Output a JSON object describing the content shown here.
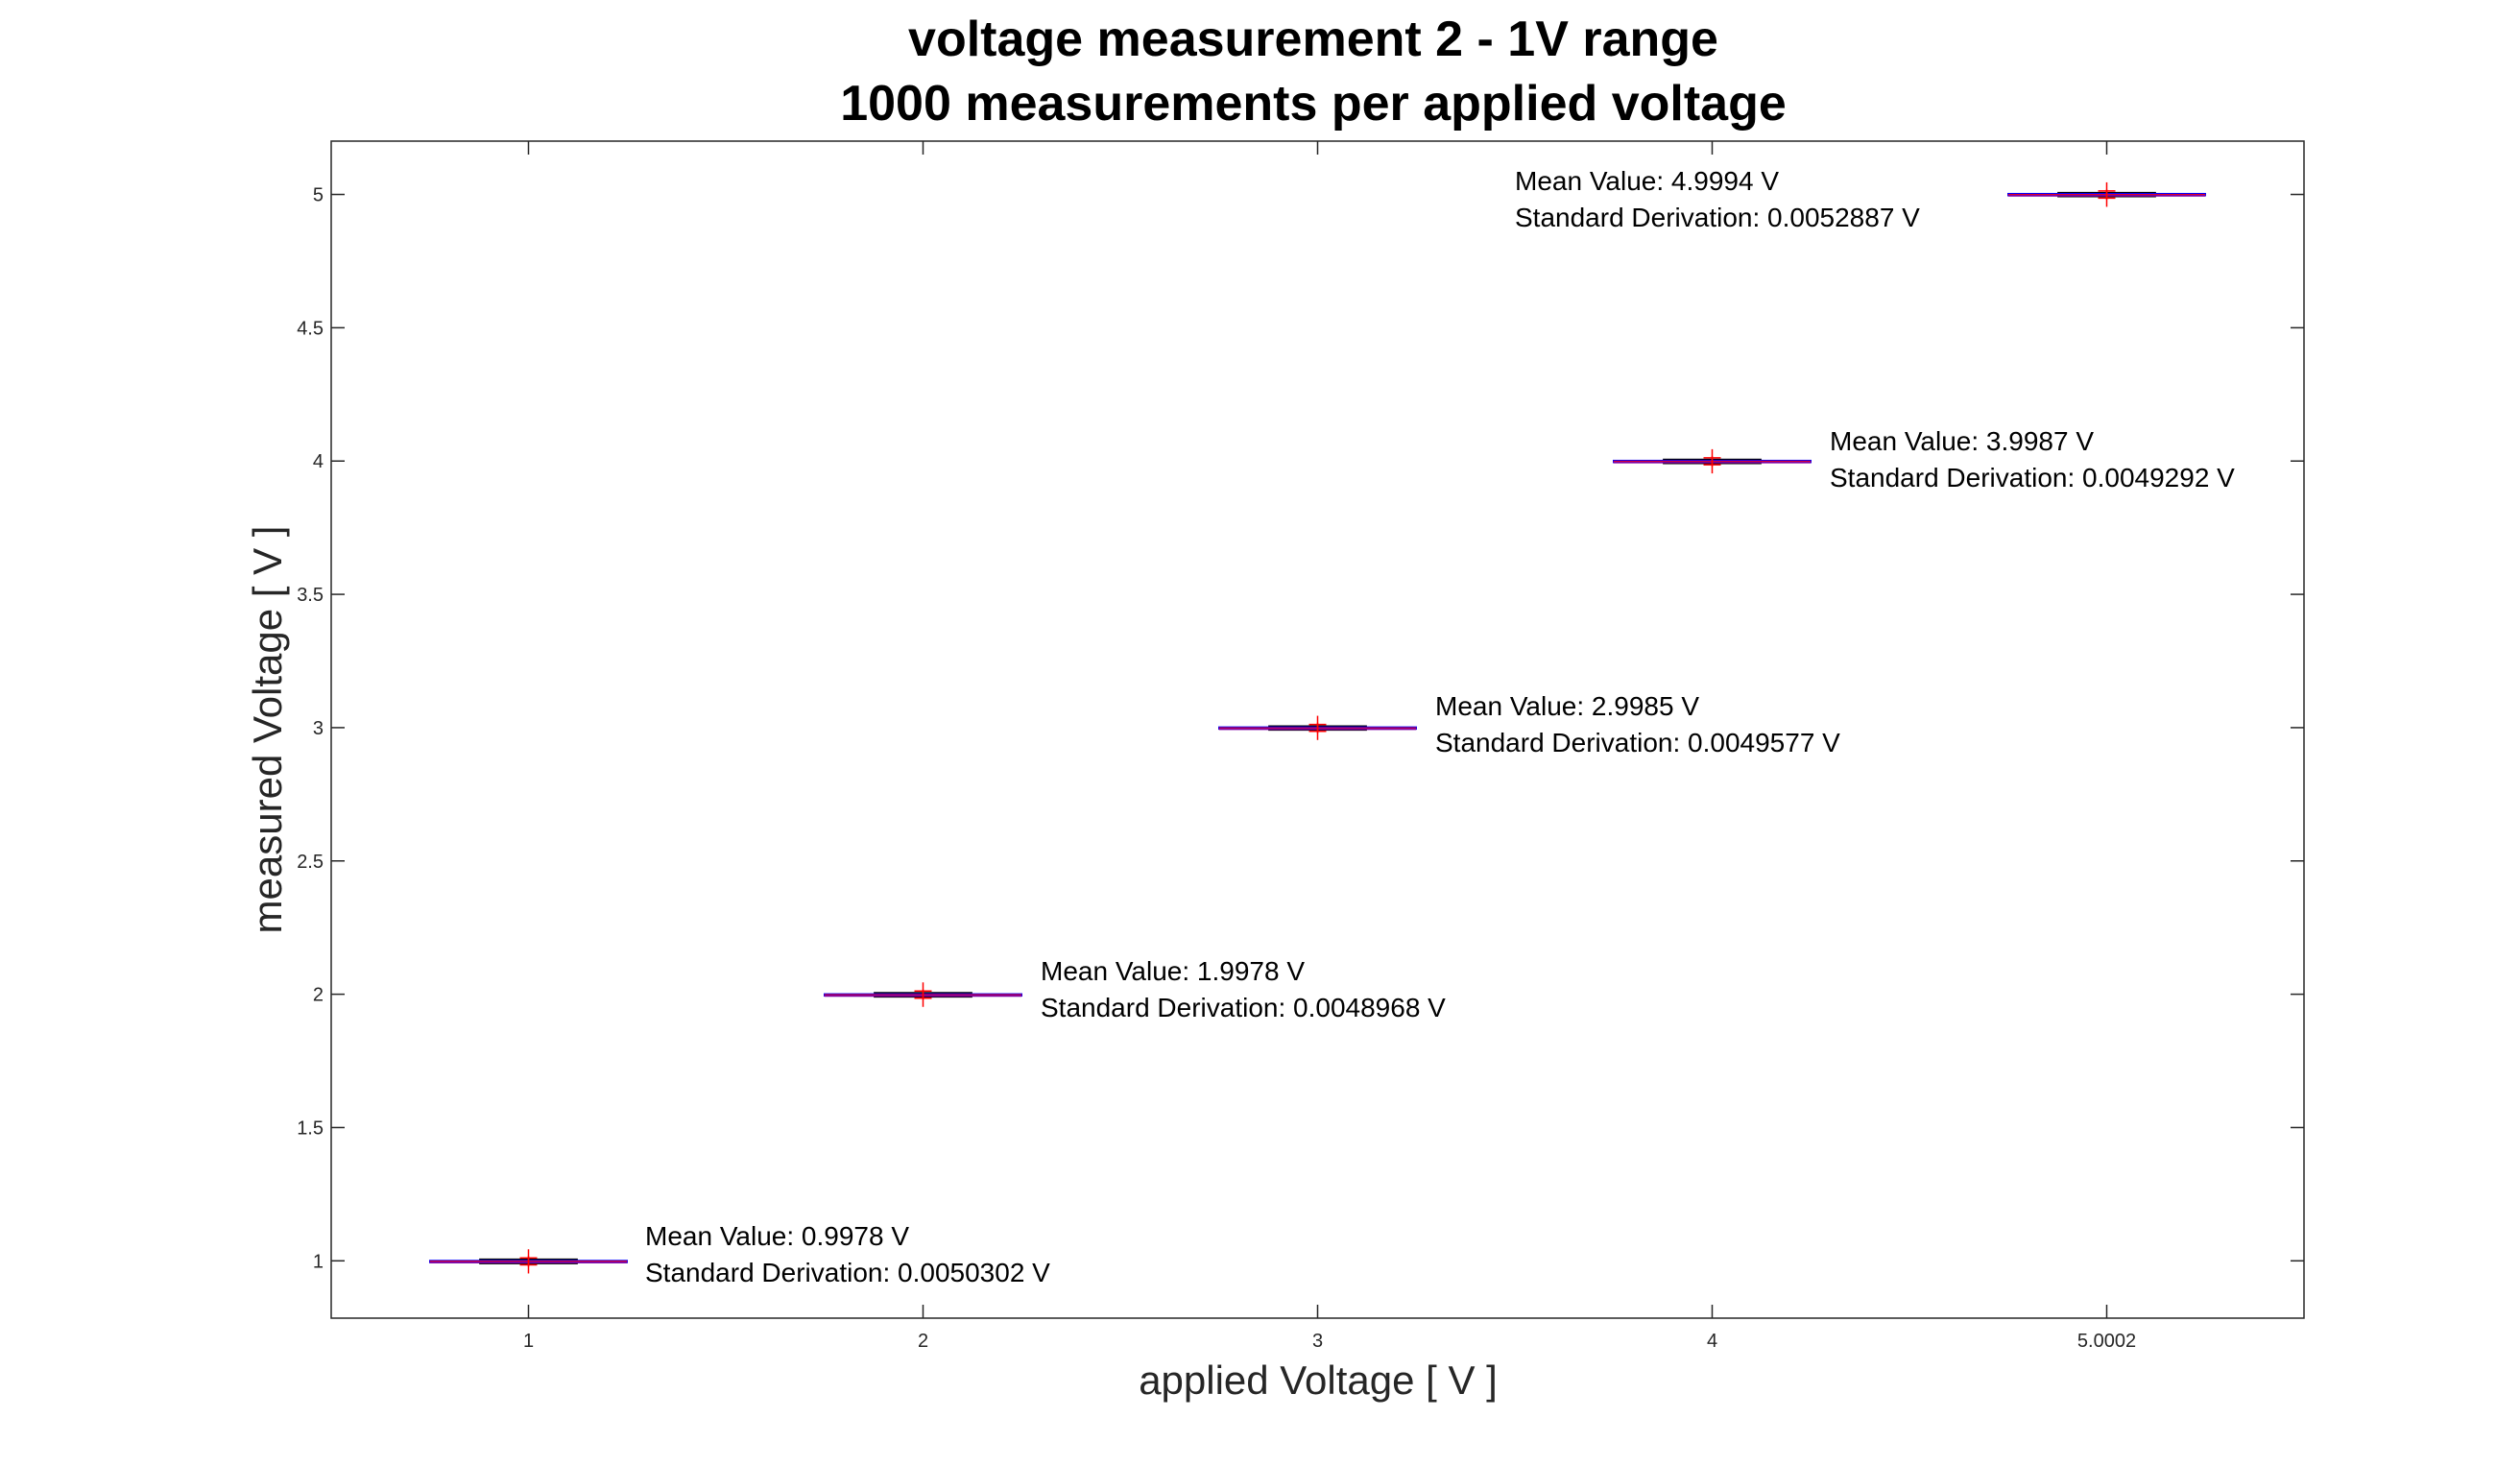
{
  "chart_data": {
    "type": "box",
    "title": [
      "voltage measurement 2 - 1V range",
      "1000 measurements per applied voltage"
    ],
    "xlabel": "applied Voltage [ V ]",
    "ylabel": "measured Voltage [ V ]",
    "categories": [
      "1",
      "2",
      "3",
      "4",
      "5.0002"
    ],
    "ylim": [
      0.785,
      5.2
    ],
    "yticks": [
      1,
      1.5,
      2,
      2.5,
      3,
      3.5,
      4,
      4.5,
      5
    ],
    "ytick_labels": [
      "1",
      "1.5",
      "2",
      "2.5",
      "3",
      "3.5",
      "4",
      "4.5",
      "5"
    ],
    "grid": false,
    "boxes": [
      {
        "category": "1",
        "median": 0.9978,
        "q1": 0.994,
        "q3": 1.001,
        "whisker_low": 0.99,
        "whisker_high": 1.006,
        "outliers": [
          0.985,
          1.011
        ]
      },
      {
        "category": "2",
        "median": 1.9978,
        "q1": 1.994,
        "q3": 2.001,
        "whisker_low": 1.99,
        "whisker_high": 2.006,
        "outliers": [
          1.985,
          2.012
        ]
      },
      {
        "category": "3",
        "median": 2.9985,
        "q1": 2.995,
        "q3": 3.002,
        "whisker_low": 2.991,
        "whisker_high": 3.006,
        "outliers": [
          2.986,
          3.012
        ]
      },
      {
        "category": "4",
        "median": 3.9987,
        "q1": 3.995,
        "q3": 4.002,
        "whisker_low": 3.991,
        "whisker_high": 4.006,
        "outliers": [
          3.986,
          4.012
        ]
      },
      {
        "category": "5.0002",
        "median": 4.9994,
        "q1": 4.996,
        "q3": 5.003,
        "whisker_low": 4.992,
        "whisker_high": 5.007,
        "outliers": [
          4.986,
          5.013
        ]
      }
    ],
    "annotations": [
      {
        "line1": "Mean Value:  0.9978 V",
        "line2": "Standard Derivation:  0.0050302 V"
      },
      {
        "line1": "Mean Value:  1.9978 V",
        "line2": "Standard Derivation:  0.0048968 V"
      },
      {
        "line1": "Mean Value:  2.9985 V",
        "line2": "Standard Derivation:  0.0049577 V"
      },
      {
        "line1": "Mean Value:  3.9987 V",
        "line2": "Standard Derivation:  0.0049292 V"
      },
      {
        "line1": "Mean Value:  4.9994 V",
        "line2": "Standard Derivation:  0.0052887 V"
      }
    ],
    "colors": {
      "box": "#0000ff",
      "median": "#ff0000",
      "outlier": "#ff0000",
      "whisker": "#000000",
      "axes": "#262626"
    }
  }
}
